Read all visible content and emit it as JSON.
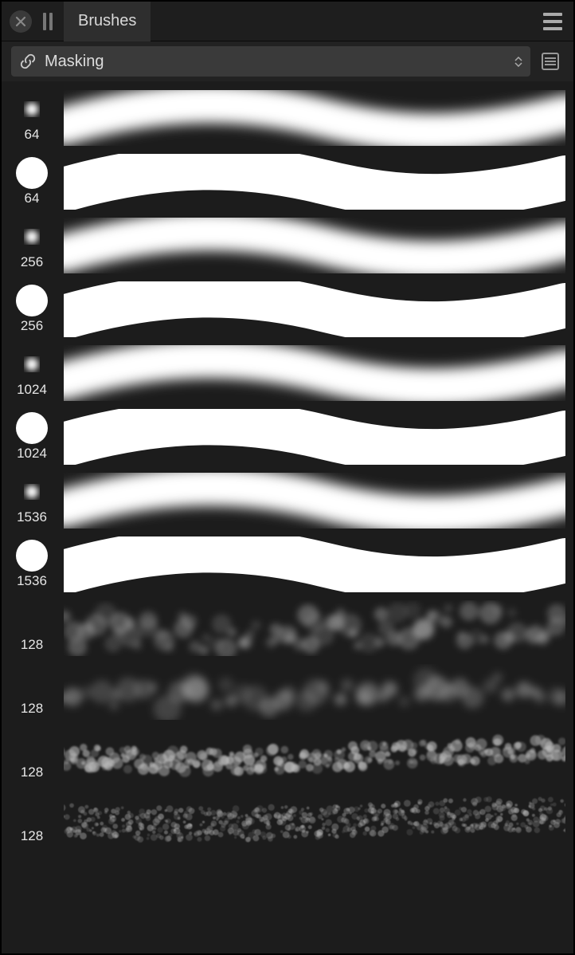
{
  "header": {
    "tab_label": "Brushes"
  },
  "toolbar": {
    "category_label": "Masking"
  },
  "colors": {
    "bg": "#1c1c1c",
    "panel": "#2e2e2e",
    "selector_bg": "#3a3a3a",
    "text": "#dddddd",
    "stroke": "#ffffff",
    "cloud": "#b8b8b8"
  },
  "brushes": [
    {
      "size": "64",
      "type": "soft",
      "thumb_radius": 8,
      "blur": 4,
      "stroke_width": 48,
      "stroke_blur": 8
    },
    {
      "size": "64",
      "type": "hard",
      "thumb_radius": 20,
      "blur": 0,
      "stroke_width": 56,
      "stroke_blur": 0
    },
    {
      "size": "256",
      "type": "soft",
      "thumb_radius": 8,
      "blur": 4,
      "stroke_width": 48,
      "stroke_blur": 8
    },
    {
      "size": "256",
      "type": "hard",
      "thumb_radius": 20,
      "blur": 0,
      "stroke_width": 56,
      "stroke_blur": 0
    },
    {
      "size": "1024",
      "type": "soft",
      "thumb_radius": 8,
      "blur": 4,
      "stroke_width": 48,
      "stroke_blur": 8
    },
    {
      "size": "1024",
      "type": "hard",
      "thumb_radius": 20,
      "blur": 0,
      "stroke_width": 56,
      "stroke_blur": 0
    },
    {
      "size": "1536",
      "type": "soft",
      "thumb_radius": 8,
      "blur": 4,
      "stroke_width": 48,
      "stroke_blur": 8
    },
    {
      "size": "1536",
      "type": "hard",
      "thumb_radius": 20,
      "blur": 0,
      "stroke_width": 56,
      "stroke_blur": 0
    },
    {
      "size": "128",
      "type": "cloud",
      "variant": 1,
      "dot_r": 10,
      "dot_blur": 4,
      "density": 80,
      "opacity": 0.35,
      "spread": 22
    },
    {
      "size": "128",
      "type": "cloud",
      "variant": 2,
      "dot_r": 12,
      "dot_blur": 5,
      "density": 45,
      "opacity": 0.4,
      "spread": 16
    },
    {
      "size": "128",
      "type": "cloud",
      "variant": 3,
      "dot_r": 5,
      "dot_blur": 1,
      "density": 260,
      "opacity": 0.55,
      "spread": 14
    },
    {
      "size": "128",
      "type": "cloud",
      "variant": 4,
      "dot_r": 3,
      "dot_blur": 0.5,
      "density": 600,
      "opacity": 0.35,
      "spread": 20
    }
  ]
}
